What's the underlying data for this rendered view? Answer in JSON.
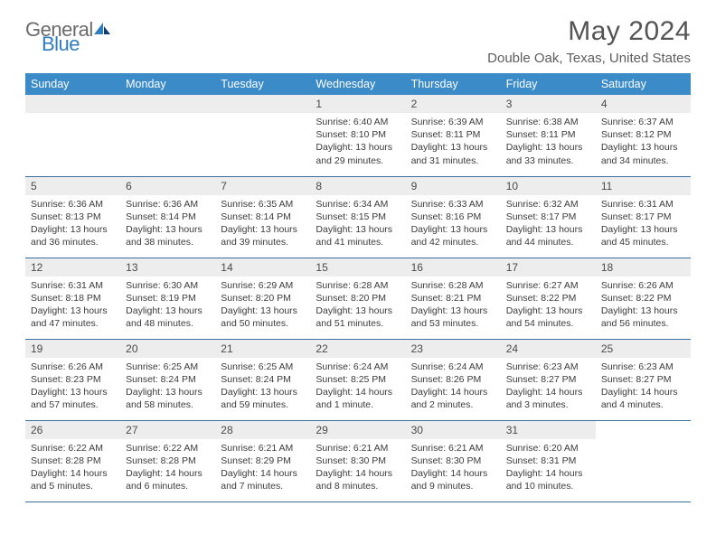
{
  "brand": {
    "part1": "General",
    "part2": "Blue"
  },
  "title": "May 2024",
  "location": "Double Oak, Texas, United States",
  "accent_color": "#3b8bc9",
  "rule_color": "#3b6fa0",
  "daybar_bg": "#ededed",
  "weekdays": [
    "Sunday",
    "Monday",
    "Tuesday",
    "Wednesday",
    "Thursday",
    "Friday",
    "Saturday"
  ],
  "weeks": [
    [
      null,
      null,
      null,
      {
        "n": "1",
        "sr": "6:40 AM",
        "ss": "8:10 PM",
        "dl": "13 hours and 29 minutes."
      },
      {
        "n": "2",
        "sr": "6:39 AM",
        "ss": "8:11 PM",
        "dl": "13 hours and 31 minutes."
      },
      {
        "n": "3",
        "sr": "6:38 AM",
        "ss": "8:11 PM",
        "dl": "13 hours and 33 minutes."
      },
      {
        "n": "4",
        "sr": "6:37 AM",
        "ss": "8:12 PM",
        "dl": "13 hours and 34 minutes."
      }
    ],
    [
      {
        "n": "5",
        "sr": "6:36 AM",
        "ss": "8:13 PM",
        "dl": "13 hours and 36 minutes."
      },
      {
        "n": "6",
        "sr": "6:36 AM",
        "ss": "8:14 PM",
        "dl": "13 hours and 38 minutes."
      },
      {
        "n": "7",
        "sr": "6:35 AM",
        "ss": "8:14 PM",
        "dl": "13 hours and 39 minutes."
      },
      {
        "n": "8",
        "sr": "6:34 AM",
        "ss": "8:15 PM",
        "dl": "13 hours and 41 minutes."
      },
      {
        "n": "9",
        "sr": "6:33 AM",
        "ss": "8:16 PM",
        "dl": "13 hours and 42 minutes."
      },
      {
        "n": "10",
        "sr": "6:32 AM",
        "ss": "8:17 PM",
        "dl": "13 hours and 44 minutes."
      },
      {
        "n": "11",
        "sr": "6:31 AM",
        "ss": "8:17 PM",
        "dl": "13 hours and 45 minutes."
      }
    ],
    [
      {
        "n": "12",
        "sr": "6:31 AM",
        "ss": "8:18 PM",
        "dl": "13 hours and 47 minutes."
      },
      {
        "n": "13",
        "sr": "6:30 AM",
        "ss": "8:19 PM",
        "dl": "13 hours and 48 minutes."
      },
      {
        "n": "14",
        "sr": "6:29 AM",
        "ss": "8:20 PM",
        "dl": "13 hours and 50 minutes."
      },
      {
        "n": "15",
        "sr": "6:28 AM",
        "ss": "8:20 PM",
        "dl": "13 hours and 51 minutes."
      },
      {
        "n": "16",
        "sr": "6:28 AM",
        "ss": "8:21 PM",
        "dl": "13 hours and 53 minutes."
      },
      {
        "n": "17",
        "sr": "6:27 AM",
        "ss": "8:22 PM",
        "dl": "13 hours and 54 minutes."
      },
      {
        "n": "18",
        "sr": "6:26 AM",
        "ss": "8:22 PM",
        "dl": "13 hours and 56 minutes."
      }
    ],
    [
      {
        "n": "19",
        "sr": "6:26 AM",
        "ss": "8:23 PM",
        "dl": "13 hours and 57 minutes."
      },
      {
        "n": "20",
        "sr": "6:25 AM",
        "ss": "8:24 PM",
        "dl": "13 hours and 58 minutes."
      },
      {
        "n": "21",
        "sr": "6:25 AM",
        "ss": "8:24 PM",
        "dl": "13 hours and 59 minutes."
      },
      {
        "n": "22",
        "sr": "6:24 AM",
        "ss": "8:25 PM",
        "dl": "14 hours and 1 minute."
      },
      {
        "n": "23",
        "sr": "6:24 AM",
        "ss": "8:26 PM",
        "dl": "14 hours and 2 minutes."
      },
      {
        "n": "24",
        "sr": "6:23 AM",
        "ss": "8:27 PM",
        "dl": "14 hours and 3 minutes."
      },
      {
        "n": "25",
        "sr": "6:23 AM",
        "ss": "8:27 PM",
        "dl": "14 hours and 4 minutes."
      }
    ],
    [
      {
        "n": "26",
        "sr": "6:22 AM",
        "ss": "8:28 PM",
        "dl": "14 hours and 5 minutes."
      },
      {
        "n": "27",
        "sr": "6:22 AM",
        "ss": "8:28 PM",
        "dl": "14 hours and 6 minutes."
      },
      {
        "n": "28",
        "sr": "6:21 AM",
        "ss": "8:29 PM",
        "dl": "14 hours and 7 minutes."
      },
      {
        "n": "29",
        "sr": "6:21 AM",
        "ss": "8:30 PM",
        "dl": "14 hours and 8 minutes."
      },
      {
        "n": "30",
        "sr": "6:21 AM",
        "ss": "8:30 PM",
        "dl": "14 hours and 9 minutes."
      },
      {
        "n": "31",
        "sr": "6:20 AM",
        "ss": "8:31 PM",
        "dl": "14 hours and 10 minutes."
      },
      null
    ]
  ],
  "labels": {
    "sunrise": "Sunrise:",
    "sunset": "Sunset:",
    "daylight": "Daylight:"
  }
}
